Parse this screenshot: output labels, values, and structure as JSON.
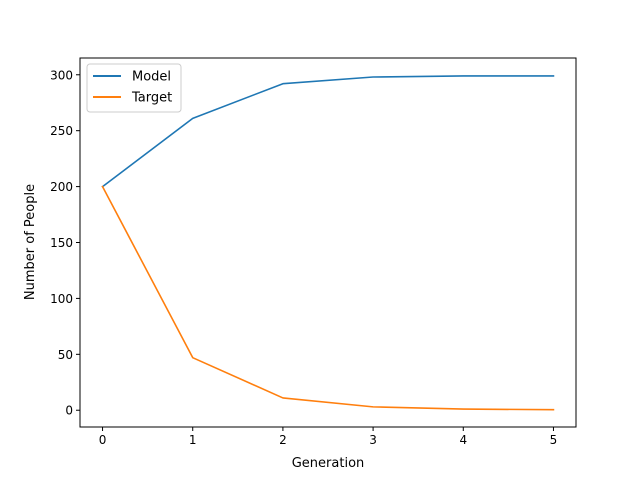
{
  "chart_data": {
    "type": "line",
    "title": "",
    "xlabel": "Generation",
    "ylabel": "Number of People",
    "x": [
      0,
      1,
      2,
      3,
      4,
      5
    ],
    "xticks": [
      "0",
      "1",
      "2",
      "3",
      "4",
      "5"
    ],
    "yticks": [
      "0",
      "50",
      "100",
      "150",
      "200",
      "250",
      "300"
    ],
    "xlim": [
      -0.25,
      5.25
    ],
    "ylim": [
      -15,
      315
    ],
    "grid": false,
    "legend_position": "top-left",
    "series": [
      {
        "name": "Model",
        "color": "#1f77b4",
        "values": [
          200,
          261,
          292,
          298,
          299,
          299
        ]
      },
      {
        "name": "Target",
        "color": "#ff7f0e",
        "values": [
          200,
          47,
          11,
          3,
          1,
          0.5
        ]
      }
    ]
  }
}
